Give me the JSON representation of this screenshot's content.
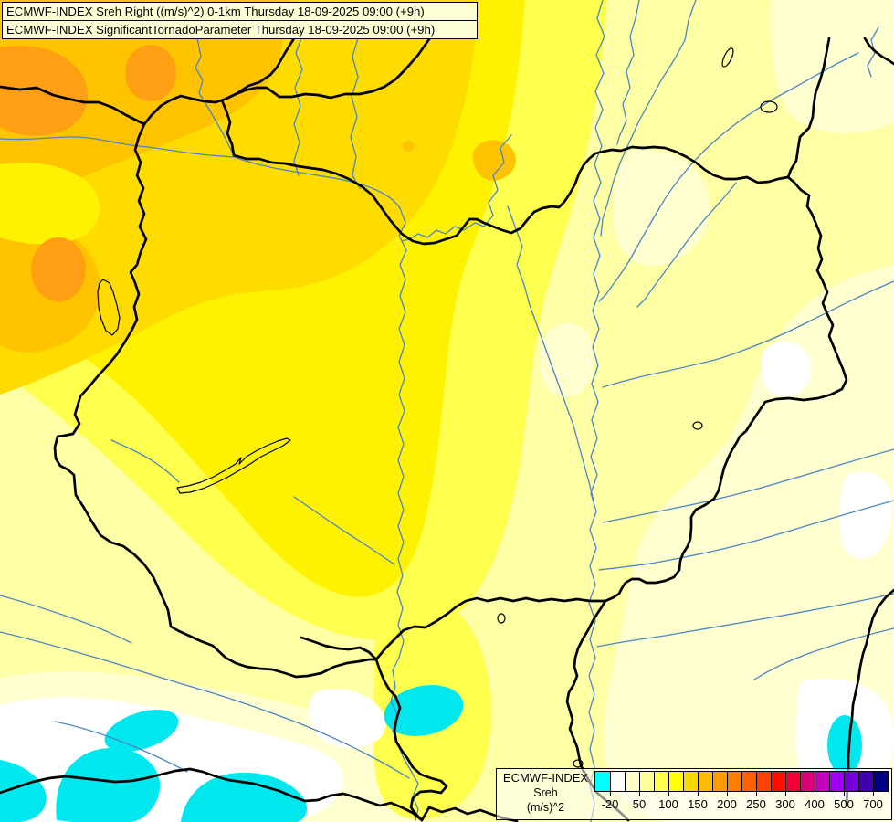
{
  "title": {
    "line1": "ECMWF-INDEX Sreh Right ((m/s)^2) 0-1km Thursday 18-09-2025 09:00 (+9h)",
    "line2": "ECMWF-INDEX SignificantTornadoParameter Thursday 18-09-2025 09:00 (+9h)"
  },
  "legend": {
    "model": "ECMWF-INDEX",
    "parameter": "Sreh",
    "unit": "(m/s)^2",
    "colors": [
      "#00FFFF",
      "#FFFFFF",
      "#FFFFCC",
      "#FFFF99",
      "#FFFF4D",
      "#FFFF00",
      "#FFD700",
      "#FFBB00",
      "#FF9D00",
      "#FF7E00",
      "#FF5F00",
      "#FF4000",
      "#FF0D00",
      "#F00035",
      "#DB0075",
      "#C300BA",
      "#9D00F0",
      "#7300DC",
      "#4000AE",
      "#000080"
    ],
    "tick_labels": [
      "-20",
      "50",
      "100",
      "150",
      "200",
      "250",
      "300",
      "400",
      "500",
      "700"
    ],
    "tick_boundaries": [
      1,
      3,
      5,
      7,
      9,
      11,
      13,
      15,
      17,
      19
    ]
  },
  "map": {
    "palette": {
      "negative_cyan": "#00E8EE",
      "white": "#FFFFFF",
      "cream": "#FFFFCF",
      "pale_yellow": "#FFFFA6",
      "yellow": "#FFFF4D",
      "bright_yellow": "#FFF200",
      "gold": "#FFDC00",
      "amber": "#FFC300",
      "orange": "#FFA014",
      "river_blue": "#4A85C5",
      "border_black": "#000000"
    }
  }
}
